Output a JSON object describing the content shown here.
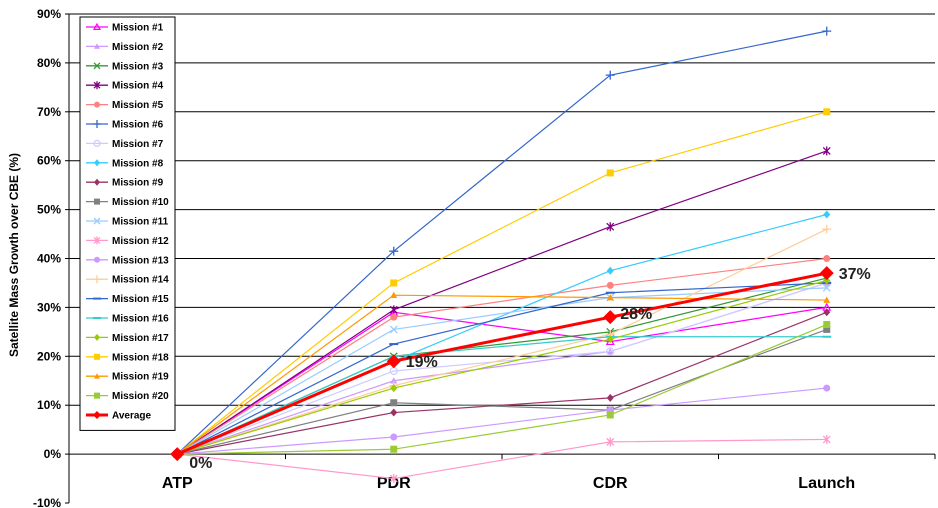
{
  "chart_data": {
    "type": "line",
    "title": "",
    "ylabel": "Satellite Mass Growth over CBE (%)",
    "xlabel": "",
    "categories": [
      "ATP",
      "PDR",
      "CDR",
      "Launch"
    ],
    "ylim": [
      -10,
      90
    ],
    "yticks": [
      -10,
      0,
      10,
      20,
      30,
      40,
      50,
      60,
      70,
      80,
      90
    ],
    "ytick_labels": [
      "-10%",
      "0%",
      "10%",
      "20%",
      "30%",
      "40%",
      "50%",
      "60%",
      "70%",
      "80%",
      "90%"
    ],
    "grid": true,
    "legend_position": "top-left",
    "data_labels": [
      {
        "series": "Average",
        "index": 0,
        "text": "0%"
      },
      {
        "series": "Average",
        "index": 1,
        "text": "19%"
      },
      {
        "series": "Average",
        "index": 2,
        "text": "28%"
      },
      {
        "series": "Average",
        "index": 3,
        "text": "37%"
      }
    ],
    "series": [
      {
        "name": "Mission #1",
        "color": "#ff00ff",
        "marker": "triangle-open",
        "values": [
          0,
          29,
          23,
          30
        ]
      },
      {
        "name": "Mission #2",
        "color": "#cc99ff",
        "marker": "triangle",
        "values": [
          0,
          15,
          21,
          35
        ]
      },
      {
        "name": "Mission #3",
        "color": "#339933",
        "marker": "x",
        "values": [
          0,
          20,
          25,
          36
        ]
      },
      {
        "name": "Mission #4",
        "color": "#800080",
        "marker": "star",
        "values": [
          0,
          29.5,
          46.5,
          62
        ]
      },
      {
        "name": "Mission #5",
        "color": "#ff8080",
        "marker": "circle",
        "values": [
          0,
          28,
          34.5,
          40
        ]
      },
      {
        "name": "Mission #6",
        "color": "#3366cc",
        "marker": "plus",
        "values": [
          0,
          41.5,
          77.5,
          86.5
        ]
      },
      {
        "name": "Mission #7",
        "color": "#ccccff",
        "marker": "circle-open",
        "values": [
          0,
          17,
          21,
          35
        ]
      },
      {
        "name": "Mission #8",
        "color": "#33ccff",
        "marker": "diamond",
        "values": [
          0,
          19,
          37.5,
          49
        ]
      },
      {
        "name": "Mission #9",
        "color": "#993366",
        "marker": "diamond",
        "values": [
          0,
          8.5,
          11.5,
          29
        ]
      },
      {
        "name": "Mission #10",
        "color": "#808080",
        "marker": "square",
        "values": [
          0,
          10.5,
          9,
          25.5
        ]
      },
      {
        "name": "Mission #11",
        "color": "#99ccff",
        "marker": "x",
        "values": [
          0,
          25.5,
          32,
          34
        ]
      },
      {
        "name": "Mission #12",
        "color": "#ff99cc",
        "marker": "star",
        "values": [
          0,
          -5,
          2.5,
          3
        ]
      },
      {
        "name": "Mission #13",
        "color": "#cc99ff",
        "marker": "circle",
        "values": [
          0,
          3.5,
          9,
          13.5
        ]
      },
      {
        "name": "Mission #14",
        "color": "#ffcc99",
        "marker": "plus",
        "values": [
          0,
          14,
          24.5,
          46
        ]
      },
      {
        "name": "Mission #15",
        "color": "#3366cc",
        "marker": "dash",
        "values": [
          0,
          22.5,
          33,
          35
        ]
      },
      {
        "name": "Mission #16",
        "color": "#33cccc",
        "marker": "dash",
        "values": [
          0,
          20,
          24,
          24
        ]
      },
      {
        "name": "Mission #17",
        "color": "#99cc00",
        "marker": "diamond",
        "values": [
          0,
          13.5,
          23.5,
          35.5
        ]
      },
      {
        "name": "Mission #18",
        "color": "#ffcc00",
        "marker": "square",
        "values": [
          0,
          35,
          57.5,
          70
        ]
      },
      {
        "name": "Mission #19",
        "color": "#ff9900",
        "marker": "triangle",
        "values": [
          0,
          32.5,
          32,
          31.5
        ]
      },
      {
        "name": "Mission #20",
        "color": "#99cc33",
        "marker": "square",
        "values": [
          0,
          1,
          8,
          26.5
        ]
      },
      {
        "name": "Average",
        "color": "#ff0000",
        "marker": "diamond-big",
        "values": [
          0,
          19,
          28,
          37
        ]
      }
    ]
  }
}
